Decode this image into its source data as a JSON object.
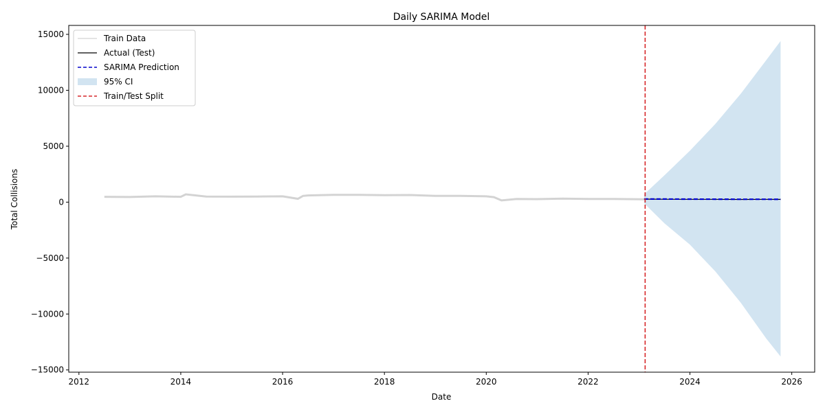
{
  "chart_data": {
    "type": "line",
    "title": "Daily SARIMA Model",
    "xlabel": "Date",
    "ylabel": "Total Collisions",
    "xlim": [
      2011.8,
      2026.45
    ],
    "ylim": [
      -15200,
      15800
    ],
    "x_ticks": [
      2012,
      2014,
      2016,
      2018,
      2020,
      2022,
      2024,
      2026
    ],
    "x_tick_labels": [
      "2012",
      "2014",
      "2016",
      "2018",
      "2020",
      "2022",
      "2024",
      "2026"
    ],
    "y_ticks": [
      -15000,
      -10000,
      -5000,
      0,
      5000,
      10000,
      15000
    ],
    "y_tick_labels": [
      "−15000",
      "−10000",
      "−5000",
      "0",
      "5000",
      "10000",
      "15000"
    ],
    "grid": false,
    "legend_position": "top-left",
    "legend": [
      "Train Data",
      "Actual (Test)",
      "SARIMA Prediction",
      "95% CI",
      "Train/Test Split"
    ],
    "colors": {
      "train": "#d3d3d3",
      "actual": "#000000",
      "prediction": "#0000cc",
      "ci": "#b4d2e7",
      "split": "#d62728"
    },
    "series": [
      {
        "name": "Train Data",
        "x": [
          2012.5,
          2013.0,
          2013.5,
          2014.0,
          2014.1,
          2014.5,
          2015.0,
          2015.5,
          2016.0,
          2016.3,
          2016.4,
          2016.5,
          2017.0,
          2017.5,
          2018.0,
          2018.5,
          2019.0,
          2019.5,
          2020.0,
          2020.15,
          2020.3,
          2020.6,
          2021.0,
          2021.5,
          2022.0,
          2022.5,
          2023.1
        ],
        "y": [
          480,
          460,
          520,
          480,
          700,
          500,
          490,
          500,
          520,
          300,
          560,
          600,
          650,
          650,
          620,
          640,
          560,
          560,
          520,
          450,
          150,
          280,
          270,
          310,
          280,
          280,
          260
        ]
      },
      {
        "name": "Actual (Test)",
        "x": [
          2023.1,
          2023.5,
          2024.0,
          2024.5,
          2025.0,
          2025.5,
          2025.78
        ],
        "y": [
          270,
          260,
          250,
          250,
          240,
          250,
          245
        ]
      },
      {
        "name": "SARIMA Prediction",
        "x": [
          2023.1,
          2023.5,
          2024.0,
          2024.5,
          2025.0,
          2025.5,
          2025.78
        ],
        "y": [
          280,
          275,
          270,
          265,
          260,
          255,
          250
        ]
      },
      {
        "name": "95% CI",
        "x": [
          2023.1,
          2023.5,
          2024.0,
          2024.5,
          2025.0,
          2025.5,
          2025.78
        ],
        "lower": [
          -100,
          -1900,
          -3800,
          -6200,
          -9000,
          -12200,
          -13800
        ],
        "upper": [
          700,
          2400,
          4600,
          7000,
          9700,
          12700,
          14400
        ]
      }
    ],
    "split_x": 2023.12
  }
}
